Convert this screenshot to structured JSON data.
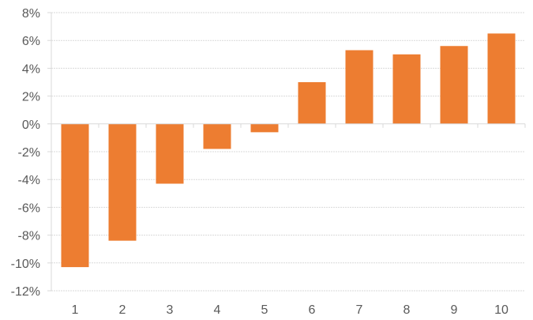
{
  "chart_data": {
    "type": "bar",
    "title": "",
    "xlabel": "",
    "ylabel": "",
    "categories": [
      "1",
      "2",
      "3",
      "4",
      "5",
      "6",
      "7",
      "8",
      "9",
      "10"
    ],
    "values": [
      -10.3,
      -8.4,
      -4.3,
      -1.8,
      -0.6,
      3.0,
      5.3,
      5.0,
      5.6,
      6.5
    ],
    "value_unit": "%",
    "ylim": [
      -12,
      8
    ],
    "yticks": [
      "8%",
      "6%",
      "4%",
      "2%",
      "0%",
      "-2%",
      "-4%",
      "-6%",
      "-8%",
      "-10%",
      "-12%"
    ],
    "ytick_values": [
      8,
      6,
      4,
      2,
      0,
      -2,
      -4,
      -6,
      -8,
      -10,
      -12
    ],
    "grid": true,
    "legend": "none",
    "colors": {
      "bar": "#ed7d31",
      "grid": "#d9d9d9",
      "axis": "#d9d9d9",
      "text": "#595959"
    }
  }
}
